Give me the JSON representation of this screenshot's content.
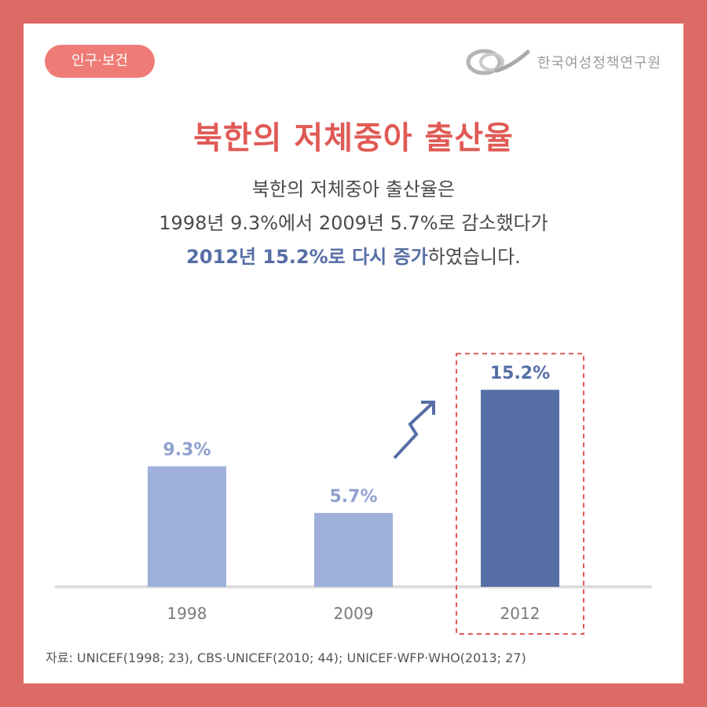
{
  "header": {
    "category_badge": "인구·보건",
    "org_name": "한국여성정책연구원"
  },
  "title": "북한의 저체중아 출산율",
  "description": {
    "line1": "북한의 저체중아 출산율은",
    "line2": "1998년 9.3%에서 2009년 5.7%로 감소했다가",
    "line3_highlight": "2012년 15.2%로 다시 증가",
    "line3_rest": "하였습니다."
  },
  "chart_data": {
    "type": "bar",
    "categories": [
      "1998",
      "2009",
      "2012"
    ],
    "values": [
      9.3,
      5.7,
      15.2
    ],
    "value_labels": [
      "9.3%",
      "5.7%",
      "15.2%"
    ],
    "unit": "%",
    "ylim": [
      0,
      20
    ],
    "highlighted_category": "2012",
    "colors": {
      "normal_bar": "#9fb1da",
      "highlight_bar": "#566ea6",
      "normal_label": "#8ea1cf",
      "highlight_label": "#566ea6",
      "highlight_box": "#e05a55",
      "baseline": "#dddddd",
      "arrow": "#566ea6"
    }
  },
  "source": "자료: UNICEF(1998; 23),  CBS·UNICEF(2010; 44); UNICEF·WFP·WHO(2013; 27)",
  "colors": {
    "frame": "#dc6b66",
    "badge": "#ef7b76",
    "title": "#e05a55",
    "accent": "#566ea6"
  }
}
